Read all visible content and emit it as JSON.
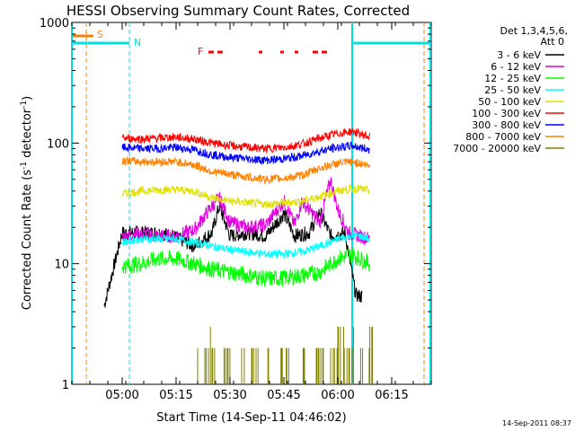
{
  "chart_data": {
    "type": "line",
    "title": "HESSI Observing Summary Count Rates, Corrected",
    "xlabel": "Start Time (14-Sep-11 04:46:02)",
    "ylabel_main": "Corrected Count Rate (s",
    "ylabel_sup1": "-1",
    "ylabel_mid": " detector",
    "ylabel_sup2": "-1",
    "ylabel_end": ")",
    "ylim": [
      1,
      1000
    ],
    "yscale": "log",
    "xlim": [
      "04:46",
      "06:26"
    ],
    "x_ticks": [
      "05:00",
      "05:15",
      "05:30",
      "05:45",
      "06:00",
      "06:15"
    ],
    "y_ticks": [
      "1",
      "10",
      "100",
      "1000"
    ],
    "legend_header": [
      "Det 1,3,4,5,6,",
      "Att 0"
    ],
    "legend_position": "right",
    "series": [
      {
        "name": "3 - 6 keV",
        "color": "#000000",
        "x": [
          "04:49",
          "04:54",
          "04:55",
          "05:00",
          "05:05",
          "05:10",
          "05:14",
          "05:20",
          "05:25",
          "05:27",
          "05:30",
          "05:35",
          "05:40",
          "05:45",
          "05:48",
          "05:52",
          "05:55",
          "05:58",
          "06:02",
          "06:05",
          "06:07",
          "06:09"
        ],
        "y": [
          null,
          null,
          4.5,
          18,
          18,
          18,
          17,
          14,
          18,
          30,
          17,
          18,
          17,
          26,
          17,
          18,
          27,
          17,
          18,
          5.5,
          5.3,
          null
        ]
      },
      {
        "name": "6 - 12 keV",
        "color": "#e000e0",
        "x": [
          "04:54",
          "05:00",
          "05:05",
          "05:10",
          "05:15",
          "05:20",
          "05:25",
          "05:27",
          "05:30",
          "05:35",
          "05:40",
          "05:45",
          "05:48",
          "05:50",
          "05:55",
          "05:58",
          "06:00",
          "06:03",
          "06:06",
          "06:09"
        ],
        "y": [
          null,
          17,
          18,
          17,
          17,
          19,
          30,
          35,
          22,
          20,
          21,
          33,
          21,
          33,
          22,
          50,
          28,
          18,
          17,
          16
        ]
      },
      {
        "name": "12 - 25 keV",
        "color": "#00ff00",
        "x": [
          "04:54",
          "05:00",
          "05:05",
          "05:10",
          "05:15",
          "05:20",
          "05:25",
          "05:30",
          "05:35",
          "05:40",
          "05:45",
          "05:50",
          "05:55",
          "06:00",
          "06:04",
          "06:06",
          "06:09"
        ],
        "y": [
          null,
          9.5,
          10,
          11,
          11,
          10,
          9,
          8.5,
          8,
          7.5,
          7.6,
          8,
          8.5,
          11,
          12,
          11,
          10
        ]
      },
      {
        "name": "25 - 50 keV",
        "color": "#00ffff",
        "x": [
          "04:54",
          "05:00",
          "05:05",
          "05:10",
          "05:15",
          "05:20",
          "05:25",
          "05:30",
          "05:35",
          "05:40",
          "05:45",
          "05:50",
          "05:55",
          "06:00",
          "06:04",
          "06:06",
          "06:09"
        ],
        "y": [
          null,
          15,
          16,
          16,
          16,
          15,
          14,
          13,
          12.5,
          12,
          12,
          12.5,
          14,
          16,
          17,
          17,
          16
        ]
      },
      {
        "name": "50 - 100 keV",
        "color": "#e0e000",
        "x": [
          "04:54",
          "05:00",
          "05:05",
          "05:10",
          "05:15",
          "05:20",
          "05:25",
          "05:30",
          "05:35",
          "05:40",
          "05:45",
          "05:50",
          "05:55",
          "06:00",
          "06:04",
          "06:06",
          "06:09"
        ],
        "y": [
          null,
          38,
          40,
          41,
          41,
          40,
          35,
          33,
          32,
          31,
          32,
          33,
          36,
          40,
          42,
          42,
          40
        ]
      },
      {
        "name": "100 - 300 keV",
        "color": "#ff0000",
        "x": [
          "04:54",
          "05:00",
          "05:05",
          "05:10",
          "05:15",
          "05:20",
          "05:25",
          "05:30",
          "05:35",
          "05:40",
          "05:45",
          "05:50",
          "05:55",
          "06:00",
          "06:04",
          "06:06",
          "06:09"
        ],
        "y": [
          null,
          110,
          108,
          110,
          112,
          108,
          100,
          95,
          92,
          90,
          92,
          98,
          110,
          120,
          125,
          120,
          112
        ]
      },
      {
        "name": "300 - 800 keV",
        "color": "#0000ff",
        "x": [
          "04:54",
          "05:00",
          "05:05",
          "05:10",
          "05:15",
          "05:20",
          "05:25",
          "05:30",
          "05:35",
          "05:40",
          "05:45",
          "05:50",
          "05:55",
          "06:00",
          "06:04",
          "06:06",
          "06:09"
        ],
        "y": [
          null,
          92,
          90,
          90,
          92,
          88,
          80,
          76,
          74,
          72,
          74,
          78,
          86,
          92,
          95,
          92,
          88
        ]
      },
      {
        "name": "800 - 7000 keV",
        "color": "#ff8000",
        "x": [
          "04:54",
          "05:00",
          "05:05",
          "05:10",
          "05:15",
          "05:20",
          "05:25",
          "05:30",
          "05:35",
          "05:40",
          "05:45",
          "05:50",
          "05:55",
          "06:00",
          "06:04",
          "06:06",
          "06:09"
        ],
        "y": [
          null,
          72,
          70,
          70,
          70,
          66,
          58,
          55,
          52,
          50,
          51,
          54,
          62,
          68,
          70,
          68,
          64
        ]
      },
      {
        "name": "7000 - 20000 keV",
        "color": "#808000",
        "x": [
          "05:20",
          "05:21",
          "05:22",
          "05:23",
          "05:24",
          "05:25",
          "05:26",
          "05:28",
          "05:30",
          "05:32",
          "05:34",
          "05:36",
          "05:38",
          "05:40",
          "05:42",
          "05:44",
          "05:46",
          "05:48",
          "05:50",
          "05:52",
          "05:54",
          "05:56",
          "05:58",
          "06:00",
          "06:02",
          "06:04",
          "06:06",
          "06:08"
        ],
        "y": [
          1.0,
          2.0,
          1.0,
          2.0,
          3.0,
          2.0,
          1.0,
          2.0,
          1.0,
          2.0,
          1.0,
          2.0,
          1.0,
          2.0,
          1.0,
          2.0,
          2.0,
          1.0,
          2.0,
          1.0,
          2.0,
          1.0,
          2.0,
          3.0,
          2.0,
          3.0,
          2.0,
          3.0
        ]
      }
    ],
    "flags": [
      {
        "label": "S",
        "color": "#ff8000",
        "times": [
          "04:50",
          "06:24"
        ],
        "bar": [
          "04:46",
          "04:52"
        ]
      },
      {
        "label": "N",
        "color": "#00e0e0",
        "times": [
          "04:46",
          "05:02",
          "06:04",
          "06:26"
        ],
        "bar": [
          "04:46",
          "05:02",
          "06:04",
          "06:26"
        ]
      },
      {
        "label": "F",
        "color": "#ff0000",
        "segments": [
          [
            "05:24",
            "05:28"
          ],
          [
            "05:38",
            "05:39"
          ],
          [
            "05:44",
            "05:45"
          ],
          [
            "05:48",
            "05:49"
          ],
          [
            "05:53",
            "05:57"
          ]
        ]
      }
    ],
    "timestamp": "14-Sep-2011 08:37"
  }
}
